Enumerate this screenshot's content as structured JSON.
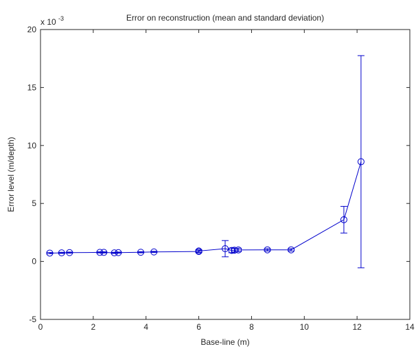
{
  "chart_data": {
    "type": "line",
    "title": "Error on reconstruction (mean and standard deviation)",
    "xlabel": "Base-line (m)",
    "ylabel": "Error level (m/depth)",
    "y_exponent_label": "x 10",
    "y_exponent_power": "-3",
    "xlim": [
      0,
      14
    ],
    "ylim": [
      -5,
      20
    ],
    "xticks": [
      0,
      2,
      4,
      6,
      8,
      10,
      12,
      14
    ],
    "yticks": [
      -5,
      0,
      5,
      10,
      15,
      20
    ],
    "grid": false,
    "marker": "circle",
    "color": "#0000cc",
    "x": [
      0.35,
      0.8,
      1.1,
      2.25,
      2.4,
      2.8,
      2.95,
      3.8,
      4.3,
      6.0,
      6.0,
      7.0,
      7.25,
      7.35,
      7.5,
      8.6,
      9.5,
      11.5,
      12.15
    ],
    "y": [
      0.72,
      0.74,
      0.76,
      0.78,
      0.78,
      0.74,
      0.76,
      0.79,
      0.82,
      0.86,
      0.9,
      1.1,
      0.95,
      0.97,
      0.99,
      1.0,
      1.0,
      3.6,
      8.6
    ],
    "yerr": [
      0.05,
      0.05,
      0.05,
      0.05,
      0.05,
      0.05,
      0.05,
      0.05,
      0.05,
      0.1,
      0.1,
      0.7,
      0.2,
      0.15,
      0.15,
      0.1,
      0.1,
      1.15,
      9.15
    ]
  }
}
